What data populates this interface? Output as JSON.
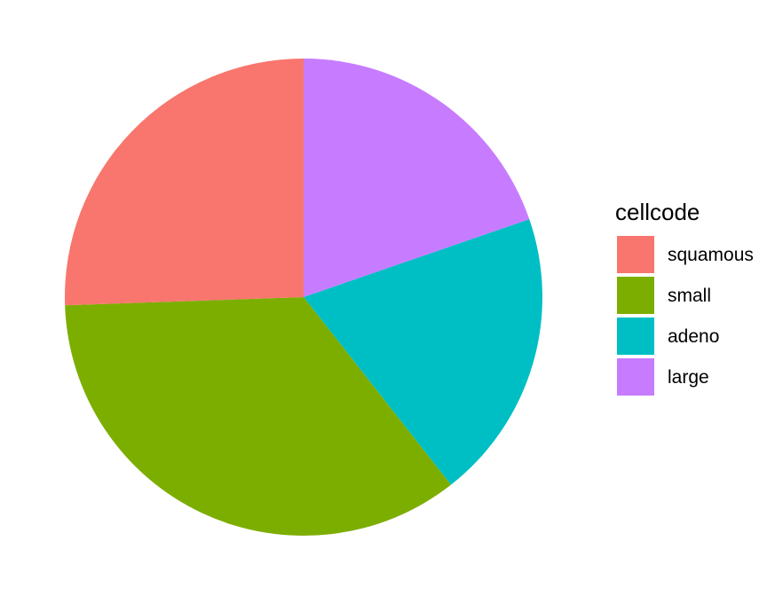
{
  "chart_data": {
    "type": "pie",
    "legend": {
      "title": "cellcode",
      "placement": "right"
    },
    "slices": [
      {
        "label": "squamous",
        "value": 35,
        "color": "#F8766D"
      },
      {
        "label": "small",
        "value": 48,
        "color": "#7CAE00"
      },
      {
        "label": "adeno",
        "value": 27,
        "color": "#00BFC4"
      },
      {
        "label": "large",
        "value": 27,
        "color": "#C77CFF"
      }
    ],
    "legend_order": [
      "squamous",
      "small",
      "adeno",
      "large"
    ],
    "slice_order_from_top": [
      "large",
      "adeno",
      "small",
      "squamous"
    ]
  }
}
